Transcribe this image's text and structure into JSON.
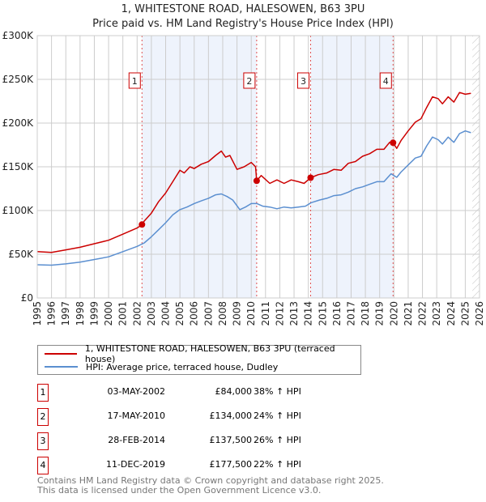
{
  "header": {
    "title": "1, WHITESTONE ROAD, HALESOWEN, B63 3PU",
    "subtitle": "Price paid vs. HM Land Registry's House Price Index (HPI)"
  },
  "chart_data": {
    "type": "line",
    "title": "1, WHITESTONE ROAD, HALESOWEN, B63 3PU",
    "subtitle": "Price paid vs. HM Land Registry's House Price Index (HPI)",
    "xlim": [
      1995,
      2026
    ],
    "ylim": [
      0,
      300000
    ],
    "grid": true,
    "x_ticks": [
      "1995",
      "1996",
      "1997",
      "1998",
      "1999",
      "2000",
      "2001",
      "2002",
      "2003",
      "2004",
      "2005",
      "2006",
      "2007",
      "2008",
      "2009",
      "2010",
      "2011",
      "2012",
      "2013",
      "2014",
      "2015",
      "2016",
      "2017",
      "2018",
      "2019",
      "2020",
      "2021",
      "2022",
      "2023",
      "2024",
      "2025",
      "2026"
    ],
    "y_ticks": [
      {
        "value": 0,
        "label": "£0"
      },
      {
        "value": 50000,
        "label": "£50K"
      },
      {
        "value": 100000,
        "label": "£100K"
      },
      {
        "value": 150000,
        "label": "£150K"
      },
      {
        "value": 200000,
        "label": "£200K"
      },
      {
        "value": 250000,
        "label": "£250K"
      },
      {
        "value": 300000,
        "label": "£300K"
      }
    ],
    "colors": {
      "property": "#cc0000",
      "hpi": "#5b8fd0",
      "shade": "#eef3fc",
      "marker": "#cc0000"
    },
    "shaded_ranges": [
      [
        2002.34,
        2010.38
      ],
      [
        2014.16,
        2019.94
      ]
    ],
    "forecast_hatch_from": 2025.5,
    "series": [
      {
        "name": "1, WHITESTONE ROAD, HALESOWEN, B63 3PU (terraced house)",
        "key": "property",
        "x": [
          1995.0,
          1996.0,
          1997.0,
          1998.0,
          1999.0,
          2000.0,
          2001.0,
          2002.0,
          2002.34,
          2002.5,
          2003.0,
          2003.5,
          2004.0,
          2004.5,
          2005.0,
          2005.3,
          2005.7,
          2006.0,
          2006.5,
          2007.0,
          2007.5,
          2007.9,
          2008.2,
          2008.5,
          2009.0,
          2009.5,
          2010.0,
          2010.3,
          2010.38,
          2010.7,
          2011.3,
          2011.8,
          2012.3,
          2012.8,
          2013.3,
          2013.7,
          2014.16,
          2014.7,
          2015.3,
          2015.8,
          2016.3,
          2016.8,
          2017.3,
          2017.8,
          2018.3,
          2018.8,
          2019.3,
          2019.7,
          2019.94,
          2020.2,
          2020.5,
          2021.0,
          2021.5,
          2021.9,
          2022.3,
          2022.7,
          2023.1,
          2023.4,
          2023.8,
          2024.2,
          2024.6,
          2025.0,
          2025.4
        ],
        "y": [
          53000,
          52000,
          55000,
          58000,
          62000,
          66000,
          73000,
          80000,
          84000,
          88000,
          97000,
          110000,
          120000,
          133000,
          146000,
          143000,
          150000,
          148000,
          153000,
          156000,
          163000,
          168000,
          161000,
          163000,
          147000,
          150000,
          155000,
          150000,
          134000,
          140000,
          131000,
          135000,
          131000,
          135000,
          133000,
          131000,
          137500,
          141000,
          143000,
          147000,
          146000,
          154000,
          156000,
          162000,
          165000,
          170000,
          170000,
          178000,
          177500,
          171000,
          180000,
          191000,
          201000,
          205000,
          218000,
          230000,
          228000,
          222000,
          230000,
          224000,
          235000,
          233000,
          234000
        ]
      },
      {
        "name": "HPI: Average price, terraced house, Dudley",
        "key": "hpi",
        "x": [
          1995.0,
          1996.0,
          1997.0,
          1998.0,
          1999.0,
          2000.0,
          2001.0,
          2002.0,
          2002.5,
          2003.0,
          2003.5,
          2004.0,
          2004.5,
          2005.0,
          2005.5,
          2006.0,
          2006.5,
          2007.0,
          2007.5,
          2007.9,
          2008.3,
          2008.7,
          2009.2,
          2009.6,
          2010.0,
          2010.4,
          2010.8,
          2011.3,
          2011.8,
          2012.3,
          2012.8,
          2013.3,
          2013.8,
          2014.2,
          2014.8,
          2015.3,
          2015.8,
          2016.3,
          2016.8,
          2017.3,
          2017.8,
          2018.3,
          2018.8,
          2019.3,
          2019.8,
          2020.2,
          2020.5,
          2021.0,
          2021.5,
          2021.9,
          2022.3,
          2022.7,
          2023.1,
          2023.4,
          2023.8,
          2024.2,
          2024.6,
          2025.0,
          2025.4
        ],
        "y": [
          38000,
          37500,
          39000,
          41000,
          44000,
          47000,
          53000,
          59000,
          63000,
          70000,
          78000,
          86000,
          95000,
          101000,
          104000,
          108000,
          111000,
          114000,
          118000,
          119000,
          116000,
          112000,
          101000,
          104000,
          108000,
          108000,
          105000,
          104000,
          102000,
          104000,
          103000,
          104000,
          105000,
          109000,
          112000,
          114000,
          117000,
          118000,
          121000,
          125000,
          127000,
          130000,
          133000,
          133000,
          142000,
          138000,
          144000,
          152000,
          160000,
          162000,
          174000,
          184000,
          181000,
          176000,
          184000,
          178000,
          188000,
          191000,
          189000
        ]
      }
    ],
    "sales": [
      {
        "num": "1",
        "x": 2002.34,
        "y": 84000,
        "date": "03-MAY-2002",
        "price": "£84,000",
        "pct": "38% ↑ HPI"
      },
      {
        "num": "2",
        "x": 2010.38,
        "y": 134000,
        "date": "17-MAY-2010",
        "price": "£134,000",
        "pct": "24% ↑ HPI"
      },
      {
        "num": "3",
        "x": 2014.16,
        "y": 137500,
        "date": "28-FEB-2014",
        "price": "£137,500",
        "pct": "26% ↑ HPI"
      },
      {
        "num": "4",
        "x": 2019.94,
        "y": 177500,
        "date": "11-DEC-2019",
        "price": "£177,500",
        "pct": "22% ↑ HPI"
      }
    ]
  },
  "legend": {
    "property": "1, WHITESTONE ROAD, HALESOWEN, B63 3PU (terraced house)",
    "hpi": "HPI: Average price, terraced house, Dudley"
  },
  "footer": {
    "line1": "Contains HM Land Registry data © Crown copyright and database right 2025.",
    "line2": "This data is licensed under the Open Government Licence v3.0."
  }
}
